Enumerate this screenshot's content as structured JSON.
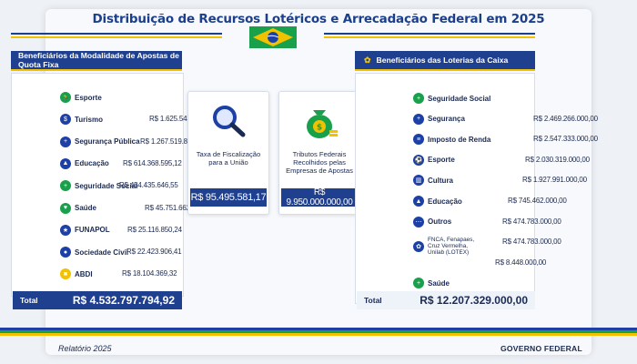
{
  "title": "Distribuição de Recursos Lotéricos e Arrecadação Federal em 2025",
  "left_panel": {
    "header": "Beneficiários da Modalidade de Apostas de Quota Fixa",
    "rows": [
      {
        "label": "Esporte",
        "value": "",
        "fill": 0.98,
        "icon": "runner-icon",
        "color": "#19a04a"
      },
      {
        "label": "Turismo",
        "value": "R$ 1.625.543.103,00",
        "fill": 0.56,
        "icon": "globe-icon",
        "color": "#1c40a6"
      },
      {
        "label": "Segurança Pública",
        "value": "R$ 1.267.519.861,61",
        "fill": 0.44,
        "icon": "shield-icon",
        "color": "#1c40a6"
      },
      {
        "label": "Educação",
        "value": "R$ 614.368.595,12",
        "fill": 0.21,
        "icon": "graduation-cap-icon",
        "color": "#1c40a6"
      },
      {
        "label": "Seguridade Social",
        "value": "R$ 454.435.646,55",
        "fill": 0.16,
        "icon": "health-cross-icon",
        "color": "#19a04a"
      },
      {
        "label": "Saúde",
        "value": "R$ 45.751.662,10",
        "fill": 0.5,
        "icon": "heartbeat-icon",
        "color": "#19a04a"
      },
      {
        "label": "FUNAPOL",
        "value": "R$ 25.116.850,24",
        "fill": 0.27,
        "icon": "badge-icon",
        "color": "#1c40a6"
      },
      {
        "label": "Sociedade Civil",
        "value": "R$ 22.423.906,41",
        "fill": 0.25,
        "icon": "people-icon",
        "color": "#1c40a6"
      },
      {
        "label": "ABDI",
        "value": "R$ 18.104.369,32",
        "fill": 0.2,
        "icon": "factory-icon",
        "color": "#f2c200"
      }
    ],
    "total_label": "Total",
    "total_value": "R$ 4.532.797.794,92"
  },
  "middle": {
    "fiscal": {
      "text": "Taxa de Fiscalização para a União",
      "value": "R$ 95.495.581,17",
      "icon": "magnifier-icon"
    },
    "tributos": {
      "text": "Tributos Federais Recolhidos pelas Empresas de Apostas",
      "value": "R$ 9.950.000.000,00",
      "icon": "money-bag-icon"
    }
  },
  "right_panel": {
    "header": "Beneficiários das Loterias da Caixa",
    "rows": [
      {
        "label": "Seguridade Social",
        "value": "",
        "fill": 0.98,
        "icon": "health-cross-icon",
        "color": "#19a04a"
      },
      {
        "label": "Segurança",
        "value": "R$ 2.469.266.000,00",
        "fill": 0.52,
        "icon": "shield-icon",
        "color": "#1c40a6"
      },
      {
        "label": "Imposto de Renda",
        "value": "R$ 2.547.333.000,00",
        "fill": 0.52,
        "icon": "document-icon",
        "color": "#1c40a6"
      },
      {
        "label": "Esporte",
        "value": "R$ 2.030.319.000,00",
        "fill": 0.43,
        "icon": "ball-icon",
        "color": "#1c40a6"
      },
      {
        "label": "Cultura",
        "value": "R$ 1.927.991.000,00",
        "fill": 0.4,
        "icon": "building-icon",
        "color": "#1c40a6"
      },
      {
        "label": "Educação",
        "value": "R$ 745.462.000,00",
        "fill": 0.24,
        "icon": "graduation-cap-icon",
        "color": "#1c40a6"
      },
      {
        "label": "Outros",
        "value": "R$ 474.783.000,00",
        "fill": 0.18,
        "icon": "dots-icon",
        "color": "#1c40a6"
      },
      {
        "label": "FNCA, Fenapaes, Cruz Vermelha, Unilab (LOTEX)",
        "value": "R$ 474.783.000,00",
        "fill": 0.18,
        "icon": "leaf-icon",
        "color": "#1c40a6"
      },
      {
        "label": "",
        "value": "R$ 8.448.000,00",
        "fill": 0.1,
        "icon": "",
        "color": "#1c40a6"
      },
      {
        "label": "Saúde",
        "value": "",
        "fill": 0,
        "icon": "plus-icon",
        "color": "#19a04a"
      }
    ],
    "total_label": "Total",
    "total_value": "R$ 12.207.329.000,00"
  },
  "footer": {
    "left": "Relatório 2025",
    "right": "GOVERNO FEDERAL"
  },
  "colors": {
    "blue": "#1c40a6",
    "green": "#19a04a",
    "yellow": "#f2c200",
    "navy": "#1f3f8f"
  }
}
